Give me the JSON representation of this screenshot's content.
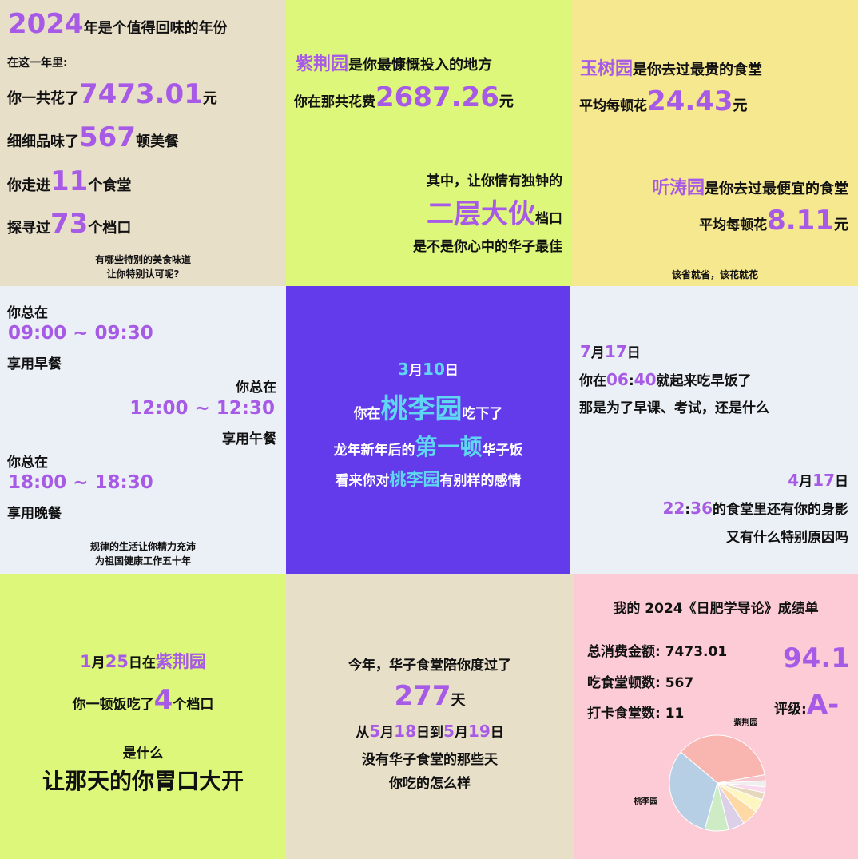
{
  "colors": {
    "beige": "#e8dfc9",
    "lime": "#dcf77a",
    "yellow": "#f6e88f",
    "pale_blue": "#eaf0f6",
    "violet": "#633bea",
    "pink": "#fccbd6",
    "accent_purple": "#a75ae6",
    "accent_cyan": "#5fd6f2"
  },
  "p1": {
    "year": "2024",
    "title_suffix": "年是个值得回味的年份",
    "intro": "在这一年里:",
    "spent_pre": "你一共花了",
    "spent_val": "7473.01",
    "spent_unit": "元",
    "meals_pre": "细细品味了",
    "meals_val": "567",
    "meals_unit": "顿美餐",
    "canteens_pre": "你走进",
    "canteens_val": "11",
    "canteens_unit": "个食堂",
    "stalls_pre": "探寻过",
    "stalls_val": "73",
    "stalls_unit": "个档口",
    "foot1": "有哪些特别的美食味道",
    "foot2": "让你特别认可呢?"
  },
  "p2": {
    "place": "紫荆园",
    "line1_suffix": "是你最慷慨投入的地方",
    "spent_pre": "你在那共花费",
    "spent_val": "2687.26",
    "spent_unit": "元",
    "fav_intro": "其中，让你情有独钟的",
    "fav_stall": "二层大伙",
    "fav_unit": "档口",
    "closing": "是不是你心中的华子最佳"
  },
  "p3": {
    "expensive_place": "玉树园",
    "expensive_suffix": "是你去过最贵的食堂",
    "expensive_avg_pre": "平均每顿花",
    "expensive_avg_val": "24.43",
    "expensive_avg_unit": "元",
    "cheap_place": "听涛园",
    "cheap_suffix": "是你去过最便宜的食堂",
    "cheap_avg_pre": "平均每顿花",
    "cheap_avg_val": "8.11",
    "cheap_avg_unit": "元",
    "foot": "该省就省，该花就花"
  },
  "p4": {
    "always": "你总在",
    "breakfast_time": "09:00 ~ 09:30",
    "breakfast": "享用早餐",
    "lunch_time": "12:00 ~ 12:30",
    "lunch": "享用午餐",
    "dinner_time": "18:00 ~ 18:30",
    "dinner": "享用晚餐",
    "foot1": "规律的生活让你精力充沛",
    "foot2": "为祖国健康工作五十年"
  },
  "p5": {
    "month": "3",
    "month_unit": "月",
    "day": "10",
    "day_unit": "日",
    "at_pre": "你在",
    "place": "桃李园",
    "at_suffix": "吃下了",
    "first_pre": "龙年新年后的",
    "first": "第一顿",
    "first_suffix": "华子饭",
    "feel_pre": "看来你对",
    "feel_suffix": "有别样的感情"
  },
  "p6": {
    "e1_month": "7",
    "e1_month_unit": "月",
    "e1_day": "17",
    "e1_day_unit": "日",
    "e1_pre": "你在",
    "e1_hour": "06",
    "e1_colon": ":",
    "e1_min": "40",
    "e1_suffix": "就起来吃早饭了",
    "e1_line2": "那是为了早课、考试，还是什么",
    "e2_month": "4",
    "e2_month_unit": "月",
    "e2_day": "17",
    "e2_day_unit": "日",
    "e2_hour": "22",
    "e2_colon": ":",
    "e2_min": "36",
    "e2_suffix": "的食堂里还有你的身影",
    "e2_line2": "又有什么特别原因吗"
  },
  "p7": {
    "month": "1",
    "month_unit": "月",
    "day": "25",
    "day_unit": "日在",
    "place": "紫荆园",
    "stalls_pre": "你一顿饭吃了",
    "stalls_val": "4",
    "stalls_unit": "个档口",
    "q": "是什么",
    "big": "让那天的你胃口大开"
  },
  "p8": {
    "line1": "今年，华子食堂陪你度过了",
    "days_val": "277",
    "days_unit": "天",
    "from": "从",
    "m1": "5",
    "m_unit": "月",
    "d1": "18",
    "d_unit_to": "日到",
    "m2": "5",
    "d2": "19",
    "d_unit": "日",
    "line3": "没有华子食堂的那些天",
    "line4": "你吃的怎么样"
  },
  "p9": {
    "title": "我的 2024《日肥学导论》成绩单",
    "total_label": "总消费金额: 7473.01",
    "meals_label": "吃食堂顿数: 567",
    "canteens_label": "打卡食堂数: 11",
    "score": "94.1",
    "grade_label": "评级:",
    "grade": "A-"
  },
  "chart_data": {
    "type": "pie",
    "title": "",
    "slices": [
      {
        "label": "紫荆园",
        "value": 36.0,
        "color": "#f9b6b0"
      },
      {
        "label": "桃李园",
        "value": 32.0,
        "color": "#b6cfe4"
      },
      {
        "label": "",
        "value": 8.0,
        "color": "#cdebc5"
      },
      {
        "label": "",
        "value": 5.5,
        "color": "#dcd0e8"
      },
      {
        "label": "",
        "value": 5.5,
        "color": "#fed9a6"
      },
      {
        "label": "",
        "value": 4.5,
        "color": "#fdf6c0"
      },
      {
        "label": "",
        "value": 2.5,
        "color": "#e6d8bd"
      },
      {
        "label": "",
        "value": 2.0,
        "color": "#fbd9ec"
      },
      {
        "label": "",
        "value": 2.0,
        "color": "#efefef"
      },
      {
        "label": "",
        "value": 2.0,
        "color": "#f7c5cc"
      }
    ]
  }
}
